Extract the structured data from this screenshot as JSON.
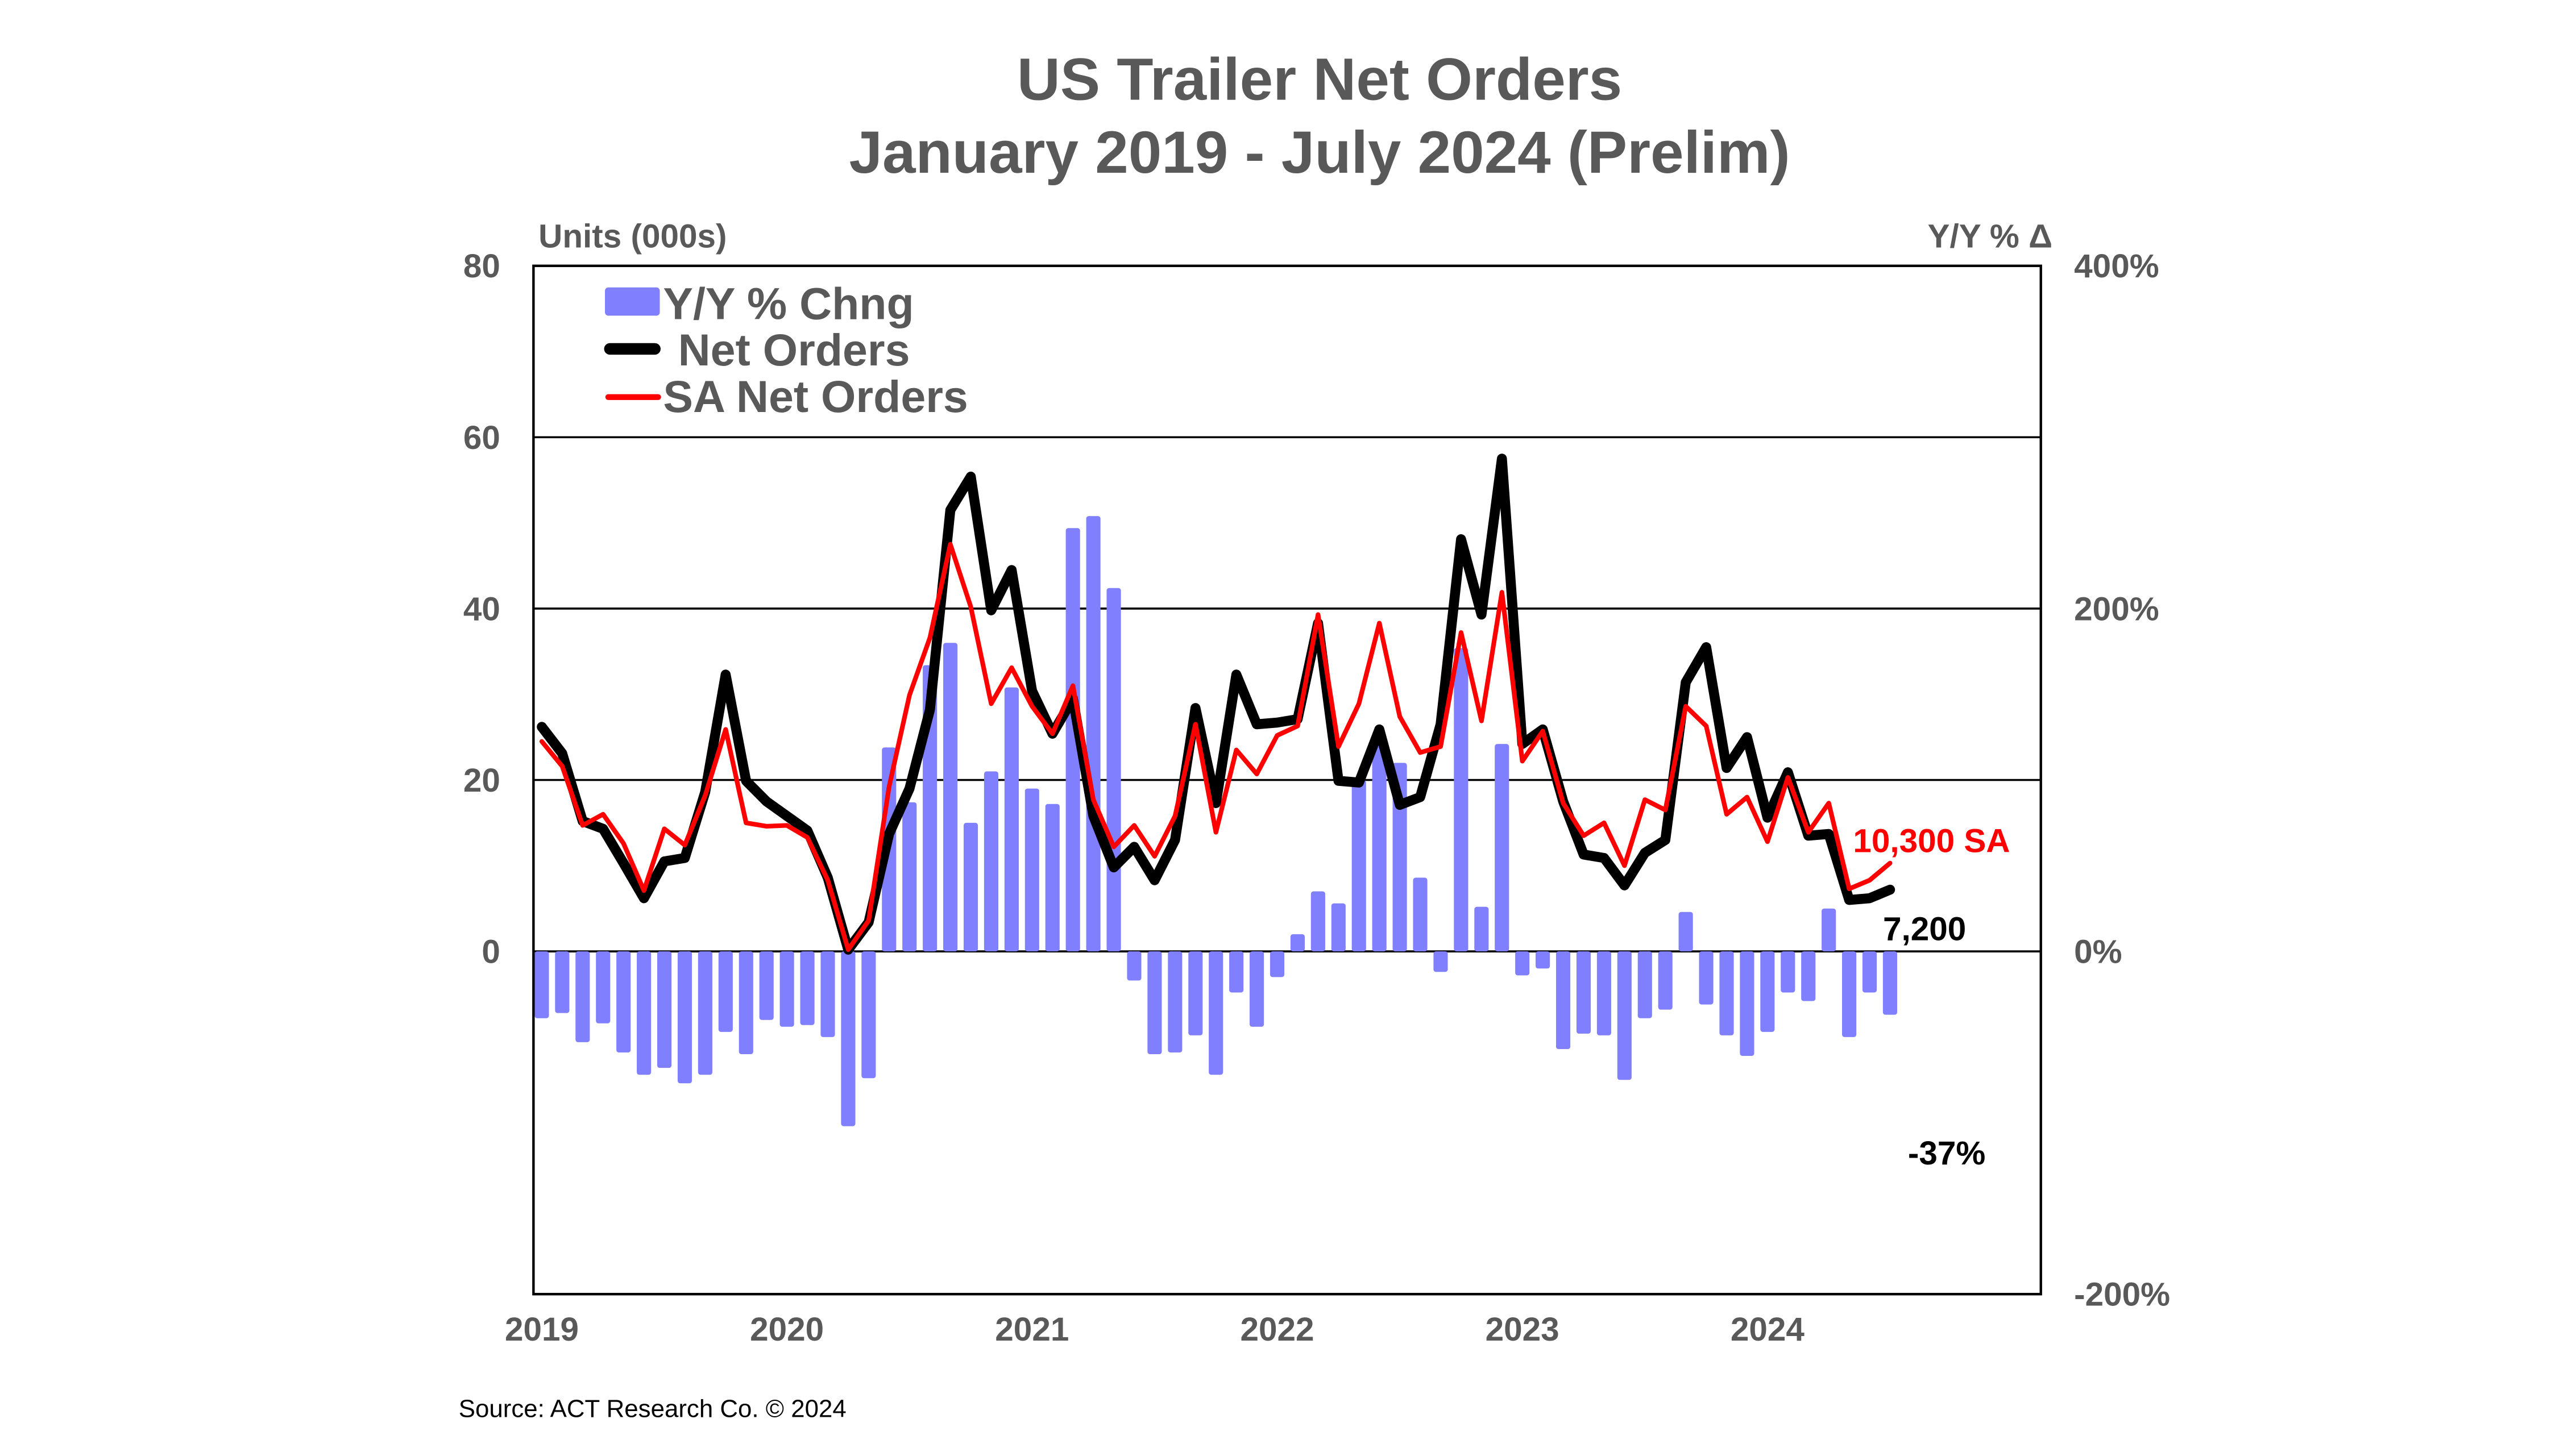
{
  "chart_data": {
    "type": "bar+line",
    "title": "US Trailer Net Orders",
    "subtitle": "January 2019 - July 2024 (Prelim)",
    "ylabel_left": "Units (000s)",
    "ylabel_right": "Y/Y % Δ",
    "ylim_left": [
      -40,
      80
    ],
    "ylim_right": [
      -200,
      400
    ],
    "yticks_left": [
      "80",
      "60",
      "40",
      "20",
      "0"
    ],
    "yticks_right": [
      "400%",
      "200%",
      "0%",
      "-200%"
    ],
    "xticks": [
      "2019",
      "2020",
      "2021",
      "2022",
      "2023",
      "2024"
    ],
    "x_start": "2019-01",
    "x_end": "2024-07",
    "grid": "horizontal",
    "legend_position": "top-left",
    "colors": {
      "yy": "#8080FF",
      "net": "#000000",
      "sa": "#FF0000"
    },
    "legend": [
      "Y/Y % Chng",
      "Net Orders",
      "SA Net Orders"
    ],
    "series": [
      {
        "name": "Y/Y % Chng",
        "type": "bar",
        "axis": "right",
        "values": [
          -39,
          -36,
          -53,
          -42,
          -59,
          -72,
          -68,
          -77,
          -72,
          -47,
          -60,
          -40,
          -44,
          -43,
          -50,
          -102,
          -74,
          119,
          87,
          167,
          180,
          75,
          105,
          154,
          95,
          86,
          247,
          254,
          212,
          -17,
          -60,
          -59,
          -49,
          -72,
          -24,
          -44,
          -15,
          10,
          35,
          28,
          100,
          121,
          110,
          43,
          -12,
          177,
          26,
          121,
          -14,
          -10,
          -57,
          -48,
          -49,
          -75,
          -39,
          -34,
          23,
          -31,
          -49,
          -61,
          -47,
          -24,
          -29,
          25,
          -50,
          -24,
          -37
        ]
      },
      {
        "name": "Net Orders",
        "type": "line",
        "axis": "left",
        "values": [
          26.2,
          23.1,
          15.2,
          14.3,
          10.3,
          6.2,
          10.5,
          10.9,
          18.6,
          32.3,
          19.9,
          17.5,
          15.8,
          14.1,
          8.6,
          0.2,
          3.4,
          13.7,
          19.0,
          28.2,
          51.5,
          55.4,
          39.8,
          44.5,
          30.4,
          25.4,
          29.5,
          15.8,
          9.8,
          12.2,
          8.3,
          13.0,
          28.4,
          17.3,
          32.3,
          26.5,
          26.7,
          27.1,
          38.3,
          19.9,
          19.7,
          25.9,
          17.1,
          18.0,
          26.5,
          48.1,
          39.3,
          57.5,
          24.2,
          25.9,
          17.5,
          11.3,
          10.9,
          7.7,
          11.5,
          13.0,
          31.4,
          35.5,
          21.4,
          25.0,
          15.6,
          20.9,
          13.5,
          13.7,
          6.0,
          6.2,
          7.2
        ]
      },
      {
        "name": "SA Net Orders",
        "type": "line",
        "axis": "left",
        "values": [
          24.5,
          21.6,
          14.7,
          16.0,
          12.6,
          7.1,
          14.3,
          12.4,
          18.2,
          25.9,
          15.0,
          14.6,
          14.7,
          13.3,
          8.3,
          0.2,
          3.6,
          19.2,
          29.9,
          36.6,
          47.5,
          40.2,
          28.9,
          33.1,
          28.6,
          25.4,
          31.0,
          17.7,
          12.2,
          14.7,
          11.1,
          15.8,
          26.5,
          13.9,
          23.5,
          20.7,
          25.2,
          26.3,
          39.3,
          23.9,
          28.9,
          38.3,
          27.4,
          23.2,
          23.9,
          37.2,
          26.9,
          41.9,
          22.2,
          25.7,
          17.3,
          13.5,
          15.0,
          10.0,
          17.7,
          16.5,
          28.6,
          26.3,
          16.0,
          18.0,
          12.8,
          20.3,
          13.9,
          17.3,
          7.3,
          8.3,
          10.3
        ]
      }
    ],
    "annotations": {
      "sa_last": "10,300 SA",
      "net_last": "7,200",
      "yy_last": "-37%"
    },
    "source": "Source: ACT Research Co. © 2024"
  }
}
